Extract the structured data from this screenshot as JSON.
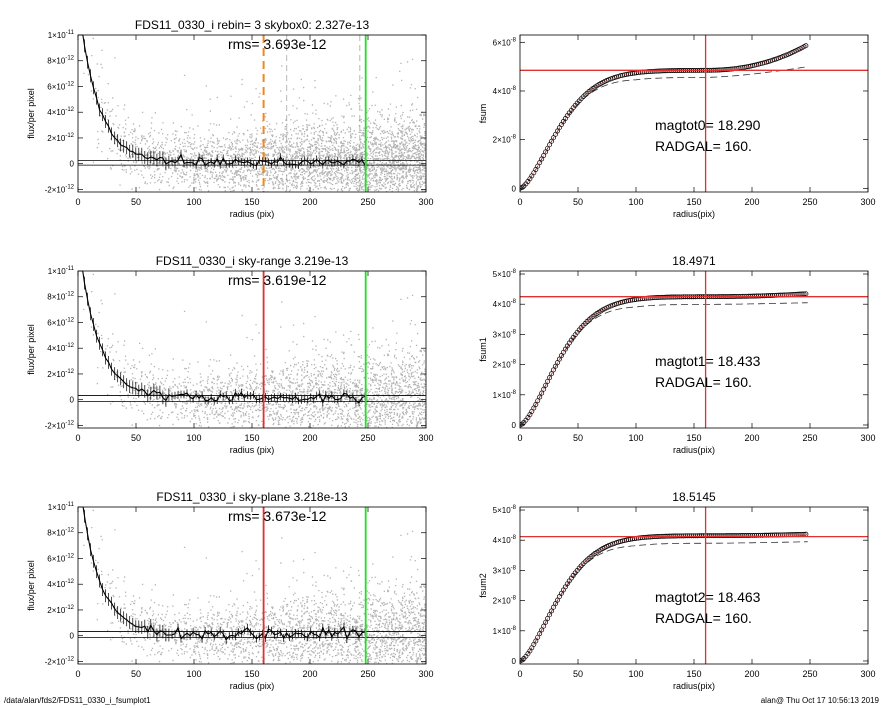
{
  "footer": {
    "path": "/data/alan/fds2/FDS11_0330_i_fsumplot1",
    "stamp": "alan@  Thu Oct 17 10:56:13 2019"
  },
  "colors": {
    "scatter": "#b4b4b4",
    "profile": "#000000",
    "red": "#e03030",
    "green": "#22dd22",
    "orange": "#ee8822",
    "dashed": "#333333"
  },
  "chart_data": [
    {
      "id": "p1",
      "type": "scatter",
      "title": "FDS11_0330_i rebin= 3    skybox0:  2.327e-13",
      "annotation": "rms= 3.693e-12",
      "xlabel": "radius (pix)",
      "ylabel": "flux/per pixel",
      "xlim": [
        0,
        300
      ],
      "ylim": [
        -2.2e-12,
        1e-11
      ],
      "xticks": [
        "0",
        "50",
        "100",
        "150",
        "200",
        "250",
        "300"
      ],
      "yticks": [
        {
          "v": -2e-12,
          "m": "-2×10",
          "e": "-12"
        },
        {
          "v": 0,
          "m": "0",
          "e": ""
        },
        {
          "v": 2e-12,
          "m": "2×10",
          "e": "-12"
        },
        {
          "v": 4e-12,
          "m": "4×10",
          "e": "-12"
        },
        {
          "v": 6e-12,
          "m": "6×10",
          "e": "-12"
        },
        {
          "v": 8e-12,
          "m": "8×10",
          "e": "-12"
        },
        {
          "v": 1e-11,
          "m": "1×10",
          "e": "-11"
        }
      ],
      "vlines": [
        {
          "x": 160,
          "color": "orange",
          "dash": true
        },
        {
          "x": 248,
          "color": "green",
          "dash": false
        }
      ],
      "faint_vlines": [
        180,
        243
      ],
      "band": [
        -1.1e-13,
        2.5e-13
      ]
    },
    {
      "id": "p2",
      "type": "line",
      "title": "",
      "annotation": [
        "magtot0=  18.290",
        "RADGAL=     160."
      ],
      "xlabel": "radius(pix)",
      "ylabel": "fsum",
      "xlim": [
        0,
        300
      ],
      "ylim": [
        -1.5e-09,
        6.3e-08
      ],
      "xticks": [
        "0",
        "50",
        "100",
        "150",
        "200",
        "250",
        "300"
      ],
      "yticks": [
        {
          "v": 0,
          "m": "0",
          "e": ""
        },
        {
          "v": 2e-08,
          "m": "2×10",
          "e": "-8"
        },
        {
          "v": 4e-08,
          "m": "4×10",
          "e": "-8"
        },
        {
          "v": 6e-08,
          "m": "6×10",
          "e": "-8"
        }
      ],
      "red_x": 160,
      "red_y": 4.85e-08,
      "plateau": 4.85e-08,
      "end_value": 5.9e-08,
      "dashed_end": 5e-08
    },
    {
      "id": "p3",
      "type": "scatter",
      "title": "FDS11_0330_i sky-range  3.219e-13",
      "annotation": "rms= 3.619e-12",
      "xlabel": "radius (pix)",
      "ylabel": "flux/per pixel",
      "xlim": [
        0,
        300
      ],
      "ylim": [
        -2.2e-12,
        1e-11
      ],
      "xticks": [
        "0",
        "50",
        "100",
        "150",
        "200",
        "250",
        "300"
      ],
      "yticks": [
        {
          "v": -2e-12,
          "m": "-2×10",
          "e": "-12"
        },
        {
          "v": 0,
          "m": "0",
          "e": ""
        },
        {
          "v": 2e-12,
          "m": "2×10",
          "e": "-12"
        },
        {
          "v": 4e-12,
          "m": "4×10",
          "e": "-12"
        },
        {
          "v": 6e-12,
          "m": "6×10",
          "e": "-12"
        },
        {
          "v": 8e-12,
          "m": "8×10",
          "e": "-12"
        },
        {
          "v": 1e-11,
          "m": "1×10",
          "e": "-11"
        }
      ],
      "vlines": [
        {
          "x": 160,
          "color": "red",
          "dash": false
        },
        {
          "x": 248,
          "color": "green",
          "dash": false
        }
      ],
      "faint_vlines": [],
      "band": [
        -1.3e-13,
        3.2e-13
      ]
    },
    {
      "id": "p4",
      "type": "line",
      "title": "18.4971",
      "annotation": [
        "magtot1=  18.433",
        "RADGAL=     160."
      ],
      "xlabel": "radius(pix)",
      "ylabel": "fsum1",
      "xlim": [
        0,
        300
      ],
      "ylim": [
        -1e-09,
        5.1e-08
      ],
      "xticks": [
        "0",
        "50",
        "100",
        "150",
        "200",
        "250",
        "300"
      ],
      "yticks": [
        {
          "v": 0,
          "m": "0",
          "e": ""
        },
        {
          "v": 1e-08,
          "m": "1×10",
          "e": "-8"
        },
        {
          "v": 2e-08,
          "m": "2×10",
          "e": "-8"
        },
        {
          "v": 3e-08,
          "m": "3×10",
          "e": "-8"
        },
        {
          "v": 4e-08,
          "m": "4×10",
          "e": "-8"
        },
        {
          "v": 5e-08,
          "m": "5×10",
          "e": "-8"
        }
      ],
      "red_x": 160,
      "red_y": 4.25e-08,
      "plateau": 4.25e-08,
      "end_value": 4.35e-08,
      "dashed_end": 4.05e-08
    },
    {
      "id": "p5",
      "type": "scatter",
      "title": "FDS11_0330_i sky-plane  3.218e-13",
      "annotation": "rms= 3.673e-12",
      "xlabel": "radius (pix)",
      "ylabel": "flux/per pixel",
      "xlim": [
        0,
        300
      ],
      "ylim": [
        -2.2e-12,
        1e-11
      ],
      "xticks": [
        "0",
        "50",
        "100",
        "150",
        "200",
        "250",
        "300"
      ],
      "yticks": [
        {
          "v": -2e-12,
          "m": "-2×10",
          "e": "-12"
        },
        {
          "v": 0,
          "m": "0",
          "e": ""
        },
        {
          "v": 2e-12,
          "m": "2×10",
          "e": "-12"
        },
        {
          "v": 4e-12,
          "m": "4×10",
          "e": "-12"
        },
        {
          "v": 6e-12,
          "m": "6×10",
          "e": "-12"
        },
        {
          "v": 8e-12,
          "m": "8×10",
          "e": "-12"
        },
        {
          "v": 1e-11,
          "m": "1×10",
          "e": "-11"
        }
      ],
      "vlines": [
        {
          "x": 160,
          "color": "red",
          "dash": false
        },
        {
          "x": 248,
          "color": "green",
          "dash": false
        }
      ],
      "faint_vlines": [],
      "band": [
        -1.3e-13,
        3.2e-13
      ]
    },
    {
      "id": "p6",
      "type": "line",
      "title": "18.5145",
      "annotation": [
        "magtot2=  18.463",
        "RADGAL=     160."
      ],
      "xlabel": "radius(pix)",
      "ylabel": "fsum2",
      "xlim": [
        0,
        300
      ],
      "ylim": [
        -1e-09,
        5.1e-08
      ],
      "xticks": [
        "0",
        "50",
        "100",
        "150",
        "200",
        "250",
        "300"
      ],
      "yticks": [
        {
          "v": 0,
          "m": "0",
          "e": ""
        },
        {
          "v": 1e-08,
          "m": "1×10",
          "e": "-8"
        },
        {
          "v": 2e-08,
          "m": "2×10",
          "e": "-8"
        },
        {
          "v": 3e-08,
          "m": "3×10",
          "e": "-8"
        },
        {
          "v": 4e-08,
          "m": "4×10",
          "e": "-8"
        },
        {
          "v": 5e-08,
          "m": "5×10",
          "e": "-8"
        }
      ],
      "red_x": 160,
      "red_y": 4.12e-08,
      "plateau": 4.15e-08,
      "end_value": 4.2e-08,
      "dashed_end": 3.95e-08
    }
  ]
}
